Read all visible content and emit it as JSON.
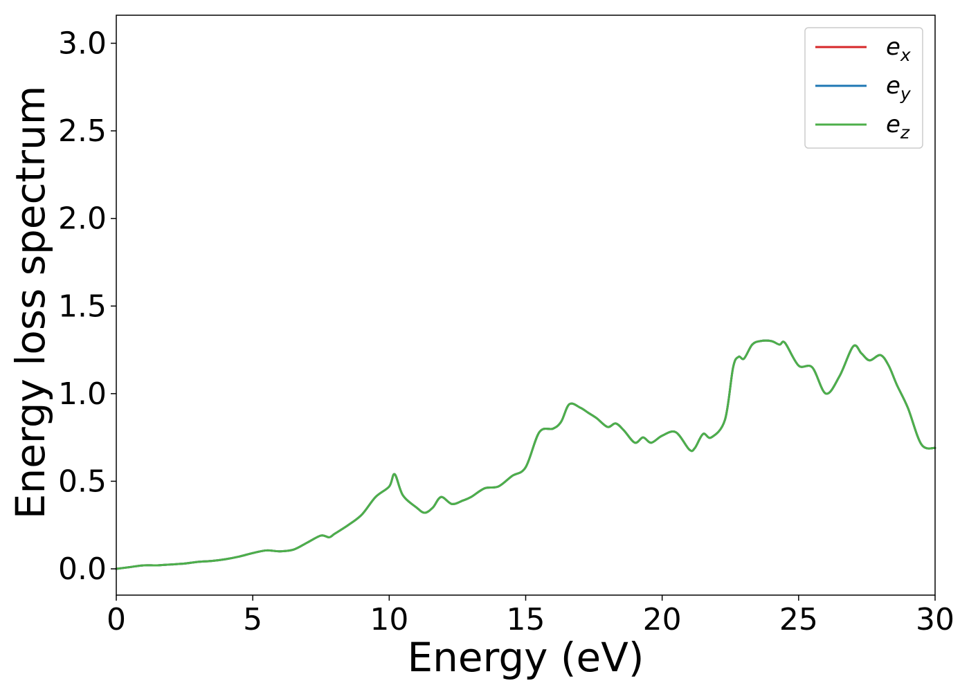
{
  "chart_data": {
    "type": "line",
    "title": "",
    "xlabel": "Energy (eV)",
    "ylabel": "Energy loss spectrum",
    "xlim": [
      0,
      30
    ],
    "ylim": [
      -0.15,
      3.16
    ],
    "xticks": [
      0,
      5,
      10,
      15,
      20,
      25,
      30
    ],
    "xtick_labels": [
      "0",
      "5",
      "10",
      "15",
      "20",
      "25",
      "30"
    ],
    "yticks": [
      0.0,
      0.5,
      1.0,
      1.5,
      2.0,
      2.5,
      3.0
    ],
    "ytick_labels": [
      "0.0",
      "0.5",
      "1.0",
      "1.5",
      "2.0",
      "2.5",
      "3.0"
    ],
    "grid": false,
    "legend_position": "top-right",
    "series": [
      {
        "name": "e",
        "subscript": "x",
        "color": "#d62728"
      },
      {
        "name": "e",
        "subscript": "y",
        "color": "#1f77b4"
      },
      {
        "name": "e",
        "subscript": "z",
        "color": "#4daf4a"
      }
    ],
    "x": [
      0,
      0.5,
      1.0,
      1.5,
      2.0,
      2.5,
      3.0,
      3.5,
      4.0,
      4.5,
      5.0,
      5.5,
      6.0,
      6.5,
      7.0,
      7.5,
      7.8,
      8.0,
      8.5,
      9.0,
      9.5,
      10.0,
      10.2,
      10.5,
      11.0,
      11.3,
      11.6,
      11.9,
      12.3,
      12.7,
      13.0,
      13.5,
      14.0,
      14.5,
      15.0,
      15.5,
      16.0,
      16.3,
      16.6,
      17.0,
      17.3,
      17.6,
      18.0,
      18.3,
      18.6,
      19.0,
      19.3,
      19.6,
      20.0,
      20.5,
      21.0,
      21.2,
      21.5,
      21.8,
      22.3,
      22.6,
      22.8,
      23.0,
      23.3,
      23.6,
      24.0,
      24.3,
      24.5,
      25.0,
      25.5,
      26.0,
      26.5,
      27.0,
      27.3,
      27.6,
      28.0,
      28.3,
      28.6,
      29.0,
      29.5,
      30.0
    ],
    "values": [
      0.0,
      0.01,
      0.02,
      0.02,
      0.025,
      0.03,
      0.04,
      0.045,
      0.055,
      0.07,
      0.09,
      0.105,
      0.1,
      0.11,
      0.15,
      0.19,
      0.18,
      0.2,
      0.25,
      0.31,
      0.41,
      0.47,
      0.54,
      0.42,
      0.35,
      0.32,
      0.35,
      0.41,
      0.37,
      0.39,
      0.41,
      0.46,
      0.47,
      0.53,
      0.58,
      0.78,
      0.8,
      0.84,
      0.94,
      0.92,
      0.89,
      0.86,
      0.81,
      0.83,
      0.79,
      0.72,
      0.75,
      0.72,
      0.76,
      0.78,
      0.68,
      0.69,
      0.77,
      0.75,
      0.85,
      1.15,
      1.21,
      1.2,
      1.28,
      1.3,
      1.3,
      1.28,
      1.29,
      1.16,
      1.15,
      1.0,
      1.1,
      1.27,
      1.23,
      1.19,
      1.22,
      1.16,
      1.05,
      0.92,
      0.71,
      0.69
    ]
  }
}
